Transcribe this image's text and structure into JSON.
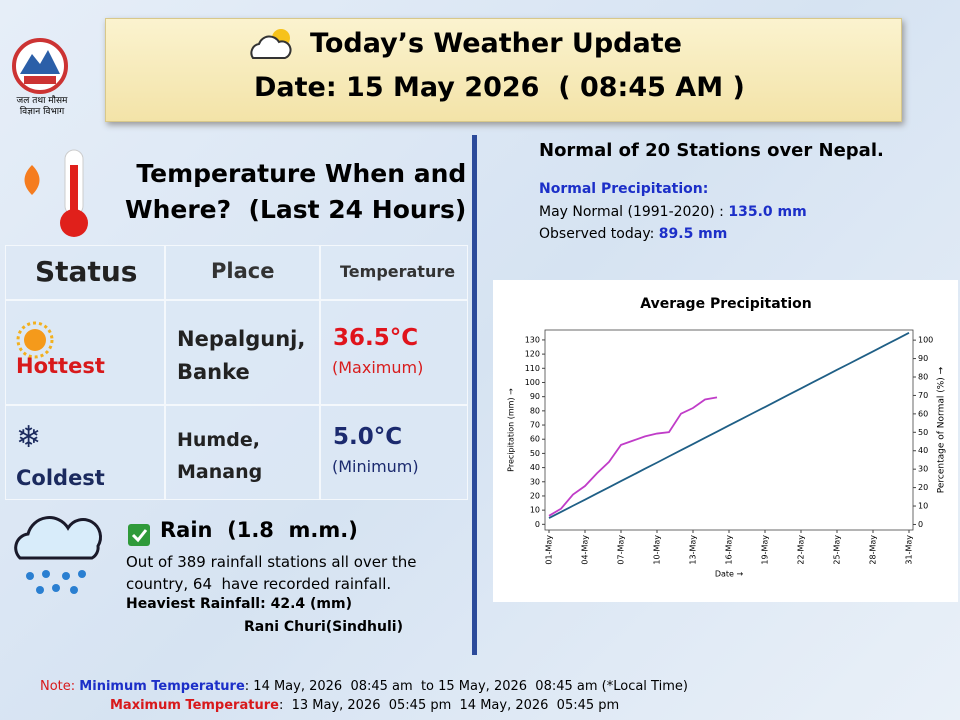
{
  "header": {
    "logo_text": [
      "जल तथा मौसम",
      "विज्ञान विभाग"
    ],
    "title": "Today’s Weather Update",
    "date": "Date: 15 May 2026  ( 08:45 AM )"
  },
  "temperature": {
    "heading": [
      "Temperature When and",
      "Where?  (Last 24 Hours)"
    ],
    "table": {
      "header": [
        "Status",
        "Place",
        "Temperature"
      ],
      "rows": [
        {
          "status": "Hottest",
          "place": [
            "Nepalgunj,",
            "Banke"
          ],
          "value": "36.5°C",
          "kind": "(Maximum)"
        },
        {
          "status": "Coldest",
          "place": [
            "Humde,",
            "Manang"
          ],
          "value": "5.0°C",
          "kind": "(Minimum)"
        }
      ]
    }
  },
  "rain": {
    "title": "Rain  (1.8  m.m.)",
    "text": [
      "Out of 389 rainfall stations all over the",
      "country, 64  have recorded rainfall."
    ],
    "heaviest": "Heaviest Rainfall: 42.4 (mm)",
    "station": "Rani Churi(Sindhuli)"
  },
  "normals": {
    "heading": "Normal of 20 Stations over Nepal.",
    "subheading": "Normal Precipitation:",
    "normal_label": "May Normal (1991-2020) : ",
    "normal_value": "135.0 mm",
    "observed_label": "Observed today: ",
    "observed_value": "89.5 mm"
  },
  "chart_data": {
    "type": "line",
    "title": "Average Precipitation",
    "x_label": "Date →",
    "y_label": "Precipitation (mm) →",
    "y2_label": "Percentage of Normal (%) →",
    "categories": [
      "01-May",
      null,
      null,
      "04-May",
      null,
      null,
      "07-May",
      null,
      null,
      "10-May",
      null,
      null,
      "13-May",
      null,
      null,
      "16-May",
      null,
      null,
      "19-May",
      null,
      null,
      "22-May",
      null,
      null,
      "25-May",
      null,
      null,
      "28-May",
      null,
      null,
      "31-May"
    ],
    "series": [
      {
        "color": "#1f5f86",
        "values": [
          4.4,
          8.7,
          13.1,
          17.4,
          21.8,
          26.1,
          30.5,
          34.8,
          39.2,
          43.5,
          47.9,
          52.3,
          56.6,
          61,
          65.3,
          69.7,
          74,
          78.4,
          82.7,
          87.1,
          91.5,
          95.8,
          100.2,
          104.5,
          108.9,
          113.2,
          117.6,
          121.9,
          126.3,
          130.6,
          135
        ]
      },
      {
        "color": "#c03cc8",
        "values": [
          6,
          11,
          21,
          27,
          36,
          44,
          56,
          59,
          62,
          64,
          65,
          78,
          82,
          88,
          89.5,
          null,
          null,
          null,
          null,
          null,
          null,
          null,
          null,
          null,
          null,
          null,
          null,
          null,
          null,
          null,
          null
        ]
      }
    ],
    "ylim": [
      -4,
      137
    ],
    "yticks": [
      0,
      10,
      20,
      30,
      40,
      50,
      60,
      70,
      80,
      90,
      100,
      110,
      120,
      130
    ],
    "y2lim": [
      -3,
      105.5
    ],
    "y2ticks": [
      0,
      10,
      20,
      30,
      40,
      50,
      60,
      70,
      80,
      90,
      100
    ]
  },
  "note": {
    "label": "Note: ",
    "min_label": "Minimum Temperature",
    "min_text": ": 14 May, 2026  08:45 am  to 15 May, 2026  08:45 am (*Local Time)",
    "max_label": "Maximum Temperature",
    "max_text": ":  13 May, 2026  05:45 pm  14 May, 2026  05:45 pm"
  }
}
